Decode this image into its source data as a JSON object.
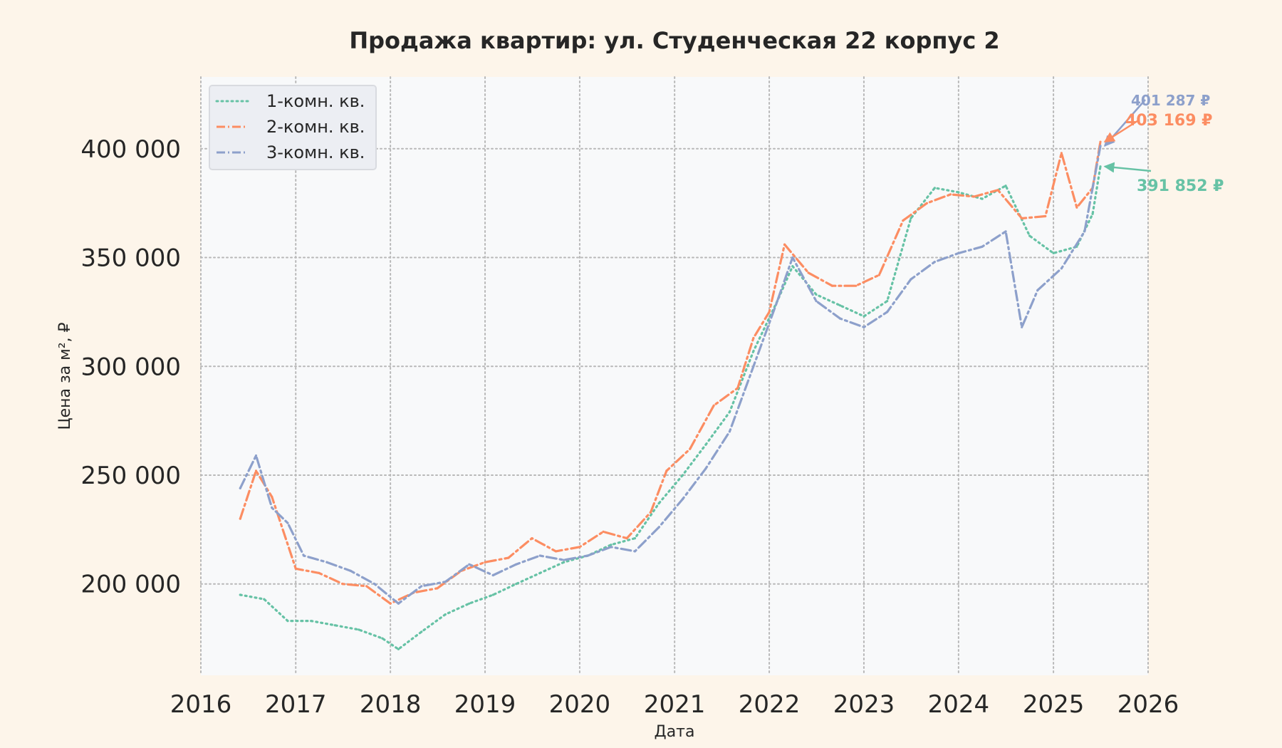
{
  "chart_data": {
    "type": "line",
    "title": "Продажа квартир: ул. Студенческая 22 корпус 2",
    "xlabel": "Дата",
    "ylabel": "Цена за м², ₽",
    "xlim": [
      "2016-01-01",
      "2026-01-01"
    ],
    "ylim": [
      158000,
      433000
    ],
    "x_ticks": [
      "2016",
      "2017",
      "2018",
      "2019",
      "2020",
      "2021",
      "2022",
      "2023",
      "2024",
      "2025",
      "2026"
    ],
    "y_ticks": [
      {
        "value": 200000,
        "label": "200 000"
      },
      {
        "value": 250000,
        "label": "250 000"
      },
      {
        "value": 300000,
        "label": "300 000"
      },
      {
        "value": 350000,
        "label": "350 000"
      },
      {
        "value": 400000,
        "label": "400 000"
      }
    ],
    "grid": true,
    "legend_position": "top-left",
    "series": [
      {
        "name": "1-комн. кв.",
        "color": "#66c2a5",
        "dash": "dotted",
        "points": [
          [
            "2016-06-01",
            195000
          ],
          [
            "2016-09-01",
            193000
          ],
          [
            "2016-12-01",
            183000
          ],
          [
            "2017-03-01",
            183000
          ],
          [
            "2017-06-01",
            181000
          ],
          [
            "2017-09-01",
            179000
          ],
          [
            "2017-12-01",
            175000
          ],
          [
            "2018-02-01",
            170000
          ],
          [
            "2018-05-01",
            178000
          ],
          [
            "2018-08-01",
            186000
          ],
          [
            "2018-11-01",
            191000
          ],
          [
            "2019-02-01",
            195000
          ],
          [
            "2019-05-01",
            200000
          ],
          [
            "2019-08-01",
            205000
          ],
          [
            "2019-11-01",
            210000
          ],
          [
            "2020-02-01",
            213000
          ],
          [
            "2020-05-01",
            218000
          ],
          [
            "2020-08-01",
            221000
          ],
          [
            "2020-11-01",
            237000
          ],
          [
            "2021-02-01",
            250000
          ],
          [
            "2021-05-01",
            264000
          ],
          [
            "2021-08-01",
            279000
          ],
          [
            "2021-11-01",
            307000
          ],
          [
            "2022-02-01",
            330000
          ],
          [
            "2022-04-01",
            346000
          ],
          [
            "2022-07-01",
            333000
          ],
          [
            "2022-10-01",
            328000
          ],
          [
            "2023-01-01",
            323000
          ],
          [
            "2023-04-01",
            330000
          ],
          [
            "2023-07-01",
            368000
          ],
          [
            "2023-10-01",
            382000
          ],
          [
            "2024-01-01",
            380000
          ],
          [
            "2024-04-01",
            377000
          ],
          [
            "2024-07-01",
            383000
          ],
          [
            "2024-10-01",
            360000
          ],
          [
            "2025-01-01",
            352000
          ],
          [
            "2025-04-01",
            355000
          ],
          [
            "2025-06-01",
            370000
          ],
          [
            "2025-07-01",
            391852
          ]
        ]
      },
      {
        "name": "2-комн. кв.",
        "color": "#fc8d62",
        "dash": "dashdot",
        "points": [
          [
            "2016-06-01",
            230000
          ],
          [
            "2016-08-01",
            252000
          ],
          [
            "2016-10-01",
            240000
          ],
          [
            "2017-01-01",
            207000
          ],
          [
            "2017-04-01",
            205000
          ],
          [
            "2017-07-01",
            200000
          ],
          [
            "2017-10-01",
            199000
          ],
          [
            "2018-01-01",
            191000
          ],
          [
            "2018-04-01",
            196000
          ],
          [
            "2018-07-01",
            198000
          ],
          [
            "2018-10-01",
            206000
          ],
          [
            "2019-01-01",
            210000
          ],
          [
            "2019-04-01",
            212000
          ],
          [
            "2019-07-01",
            221000
          ],
          [
            "2019-10-01",
            215000
          ],
          [
            "2020-01-01",
            217000
          ],
          [
            "2020-04-01",
            224000
          ],
          [
            "2020-07-01",
            221000
          ],
          [
            "2020-10-01",
            233000
          ],
          [
            "2020-12-01",
            252000
          ],
          [
            "2021-03-01",
            262000
          ],
          [
            "2021-06-01",
            282000
          ],
          [
            "2021-09-01",
            290000
          ],
          [
            "2021-11-01",
            313000
          ],
          [
            "2022-01-01",
            325000
          ],
          [
            "2022-03-01",
            356000
          ],
          [
            "2022-06-01",
            343000
          ],
          [
            "2022-09-01",
            337000
          ],
          [
            "2022-12-01",
            337000
          ],
          [
            "2023-03-01",
            342000
          ],
          [
            "2023-06-01",
            367000
          ],
          [
            "2023-09-01",
            375000
          ],
          [
            "2023-12-01",
            379000
          ],
          [
            "2024-03-01",
            378000
          ],
          [
            "2024-06-01",
            381000
          ],
          [
            "2024-09-01",
            368000
          ],
          [
            "2024-12-01",
            369000
          ],
          [
            "2025-02-01",
            398000
          ],
          [
            "2025-04-01",
            373000
          ],
          [
            "2025-06-01",
            382000
          ],
          [
            "2025-07-01",
            403169
          ]
        ]
      },
      {
        "name": "3-комн. кв.",
        "color": "#8da0cb",
        "dash": "dashdot",
        "points": [
          [
            "2016-06-01",
            244000
          ],
          [
            "2016-08-01",
            259000
          ],
          [
            "2016-10-01",
            235000
          ],
          [
            "2016-12-01",
            228000
          ],
          [
            "2017-02-01",
            213000
          ],
          [
            "2017-05-01",
            210000
          ],
          [
            "2017-08-01",
            206000
          ],
          [
            "2017-11-01",
            200000
          ],
          [
            "2018-02-01",
            191000
          ],
          [
            "2018-05-01",
            199000
          ],
          [
            "2018-08-01",
            201000
          ],
          [
            "2018-11-01",
            209000
          ],
          [
            "2019-02-01",
            204000
          ],
          [
            "2019-05-01",
            209000
          ],
          [
            "2019-08-01",
            213000
          ],
          [
            "2019-11-01",
            211000
          ],
          [
            "2020-02-01",
            213000
          ],
          [
            "2020-05-01",
            217000
          ],
          [
            "2020-08-01",
            215000
          ],
          [
            "2020-11-01",
            226000
          ],
          [
            "2021-02-01",
            239000
          ],
          [
            "2021-05-01",
            253000
          ],
          [
            "2021-08-01",
            270000
          ],
          [
            "2021-11-01",
            300000
          ],
          [
            "2022-02-01",
            330000
          ],
          [
            "2022-04-01",
            350000
          ],
          [
            "2022-07-01",
            330000
          ],
          [
            "2022-10-01",
            322000
          ],
          [
            "2023-01-01",
            318000
          ],
          [
            "2023-04-01",
            325000
          ],
          [
            "2023-07-01",
            340000
          ],
          [
            "2023-10-01",
            348000
          ],
          [
            "2024-01-01",
            352000
          ],
          [
            "2024-04-01",
            355000
          ],
          [
            "2024-07-01",
            362000
          ],
          [
            "2024-09-01",
            318000
          ],
          [
            "2024-11-01",
            335000
          ],
          [
            "2025-02-01",
            345000
          ],
          [
            "2025-05-01",
            362000
          ],
          [
            "2025-07-01",
            401287
          ]
        ]
      }
    ],
    "annotations": [
      {
        "series": 2,
        "text": "401 287 ₽",
        "color": "#8da0cb"
      },
      {
        "series": 1,
        "text": "403 169 ₽",
        "color": "#fc8d62"
      },
      {
        "series": 0,
        "text": "391 852 ₽",
        "color": "#66c2a5"
      }
    ]
  }
}
